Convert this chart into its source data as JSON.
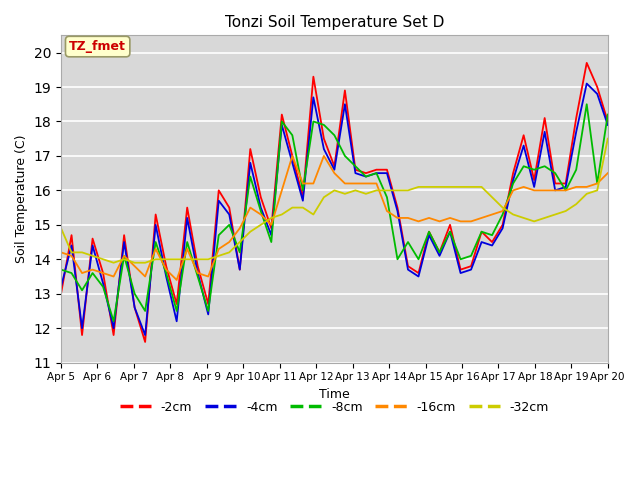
{
  "title": "Tonzi Soil Temperature Set D",
  "xlabel": "Time",
  "ylabel": "Soil Temperature (C)",
  "ylim": [
    11.0,
    20.5
  ],
  "yticks": [
    11.0,
    12.0,
    13.0,
    14.0,
    15.0,
    16.0,
    17.0,
    18.0,
    19.0,
    20.0
  ],
  "annotation": "TZ_fmet",
  "annotation_color": "#cc0000",
  "annotation_bg": "#ffffcc",
  "bg_color": "#d8d8d8",
  "legend_entries": [
    "-2cm",
    "-4cm",
    "-8cm",
    "-16cm",
    "-32cm"
  ],
  "legend_colors": [
    "#ff0000",
    "#0000dd",
    "#00bb00",
    "#ff8800",
    "#cccc00"
  ],
  "x_labels": [
    "Apr 5",
    "Apr 6",
    "Apr 7",
    "Apr 8",
    "Apr 9",
    "Apr 10",
    "Apr 11",
    "Apr 12",
    "Apr 13",
    "Apr 14",
    "Apr 15",
    "Apr 16",
    "Apr 17",
    "Apr 18",
    "Apr 19",
    "Apr 20"
  ],
  "series": {
    "neg2cm": [
      13.0,
      14.7,
      11.8,
      14.6,
      13.6,
      11.8,
      14.7,
      12.6,
      11.6,
      15.3,
      13.8,
      12.7,
      15.5,
      13.8,
      12.7,
      16.0,
      15.5,
      13.7,
      17.2,
      15.8,
      14.9,
      18.2,
      17.0,
      15.8,
      19.3,
      17.5,
      16.7,
      18.9,
      16.6,
      16.5,
      16.6,
      16.6,
      15.5,
      13.8,
      13.6,
      14.8,
      14.2,
      15.0,
      13.7,
      13.8,
      14.8,
      14.5,
      15.0,
      16.5,
      17.6,
      16.3,
      18.1,
      16.2,
      16.2,
      18.1,
      19.7,
      19.0,
      18.0
    ],
    "neg4cm": [
      13.2,
      14.4,
      12.0,
      14.4,
      13.3,
      12.0,
      14.5,
      12.6,
      11.8,
      15.0,
      13.5,
      12.2,
      15.2,
      13.6,
      12.4,
      15.7,
      15.3,
      13.7,
      16.8,
      15.5,
      14.7,
      17.9,
      16.8,
      15.7,
      18.7,
      17.2,
      16.6,
      18.5,
      16.5,
      16.4,
      16.5,
      16.5,
      15.4,
      13.7,
      13.5,
      14.7,
      14.1,
      14.8,
      13.6,
      13.7,
      14.5,
      14.4,
      14.9,
      16.3,
      17.3,
      16.1,
      17.7,
      16.0,
      16.1,
      17.7,
      19.1,
      18.8,
      17.9
    ],
    "neg8cm": [
      13.7,
      13.6,
      13.1,
      13.6,
      13.2,
      12.2,
      14.1,
      13.0,
      12.5,
      14.5,
      13.6,
      12.5,
      14.5,
      13.5,
      12.5,
      14.7,
      15.0,
      14.2,
      16.4,
      15.4,
      14.5,
      18.0,
      17.6,
      16.0,
      18.0,
      17.9,
      17.6,
      17.0,
      16.7,
      16.4,
      16.5,
      15.8,
      14.0,
      14.5,
      14.0,
      14.8,
      14.2,
      14.8,
      14.0,
      14.1,
      14.8,
      14.7,
      15.3,
      16.2,
      16.7,
      16.6,
      16.7,
      16.5,
      16.0,
      16.6,
      18.5,
      16.2,
      18.2
    ],
    "neg16cm": [
      14.2,
      14.1,
      13.6,
      13.7,
      13.6,
      13.5,
      14.1,
      13.8,
      13.5,
      14.3,
      13.7,
      13.4,
      14.3,
      13.6,
      13.5,
      14.3,
      14.5,
      14.9,
      15.5,
      15.3,
      15.0,
      16.0,
      17.0,
      16.2,
      16.2,
      17.0,
      16.5,
      16.2,
      16.2,
      16.2,
      16.2,
      15.4,
      15.2,
      15.2,
      15.1,
      15.2,
      15.1,
      15.2,
      15.1,
      15.1,
      15.2,
      15.3,
      15.4,
      16.0,
      16.1,
      16.0,
      16.0,
      16.0,
      16.0,
      16.1,
      16.1,
      16.2,
      16.5
    ],
    "neg32cm": [
      14.9,
      14.2,
      14.2,
      14.1,
      14.0,
      13.9,
      14.0,
      13.9,
      13.9,
      14.0,
      14.0,
      14.0,
      14.0,
      14.0,
      14.0,
      14.1,
      14.2,
      14.5,
      14.8,
      15.0,
      15.2,
      15.3,
      15.5,
      15.5,
      15.3,
      15.8,
      16.0,
      15.9,
      16.0,
      15.9,
      16.0,
      16.0,
      16.0,
      16.0,
      16.1,
      16.1,
      16.1,
      16.1,
      16.1,
      16.1,
      16.1,
      15.8,
      15.5,
      15.3,
      15.2,
      15.1,
      15.2,
      15.3,
      15.4,
      15.6,
      15.9,
      16.0,
      17.5
    ]
  }
}
